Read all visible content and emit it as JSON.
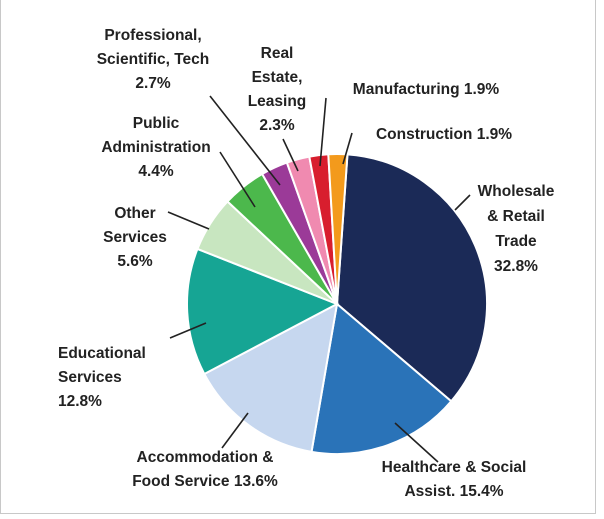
{
  "chart_data": {
    "type": "pie",
    "title": "",
    "start_angle_deg": 4,
    "direction": "clockwise",
    "slices": [
      {
        "label": [
          "Wholesale",
          "& Retail",
          "Trade",
          "32.8%"
        ],
        "value": 32.8,
        "color": "#1b2a57"
      },
      {
        "label": [
          "Healthcare & Social",
          "Assist. 15.4%"
        ],
        "value": 15.4,
        "color": "#2a73b8"
      },
      {
        "label": [
          "Accommodation &",
          "Food Service 13.6%"
        ],
        "value": 13.6,
        "color": "#c6d7ef"
      },
      {
        "label": [
          "Educational",
          "Services",
          "12.8%"
        ],
        "value": 12.8,
        "color": "#16a594"
      },
      {
        "label": [
          "Other",
          "Services",
          "5.6%"
        ],
        "value": 5.6,
        "color": "#c8e6c0"
      },
      {
        "label": [
          "Public",
          "Administration",
          "4.4%"
        ],
        "value": 4.4,
        "color": "#4cb84c"
      },
      {
        "label": [
          "Professional,",
          "Scientific, Tech",
          "2.7%"
        ],
        "value": 2.7,
        "color": "#9b3a98"
      },
      {
        "label": [
          "Real",
          "Estate,",
          "Leasing",
          "2.3%"
        ],
        "value": 2.3,
        "color": "#f08ab0"
      },
      {
        "label": [
          "Manufacturing 1.9%"
        ],
        "value": 1.9,
        "color": "#d81e2e"
      },
      {
        "label": [
          "Construction 1.9%"
        ],
        "value": 1.9,
        "color": "#f39a1c"
      }
    ]
  }
}
